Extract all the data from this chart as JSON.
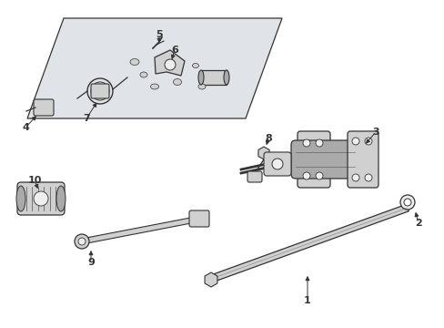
{
  "background_color": "#ffffff",
  "figure_width": 4.89,
  "figure_height": 3.6,
  "dpi": 100,
  "line_color": "#333333",
  "plate_fill": "#e0e4e8",
  "part_fill": "#d0d0d0",
  "part_dark": "#aaaaaa",
  "part_light": "#eeeeee"
}
